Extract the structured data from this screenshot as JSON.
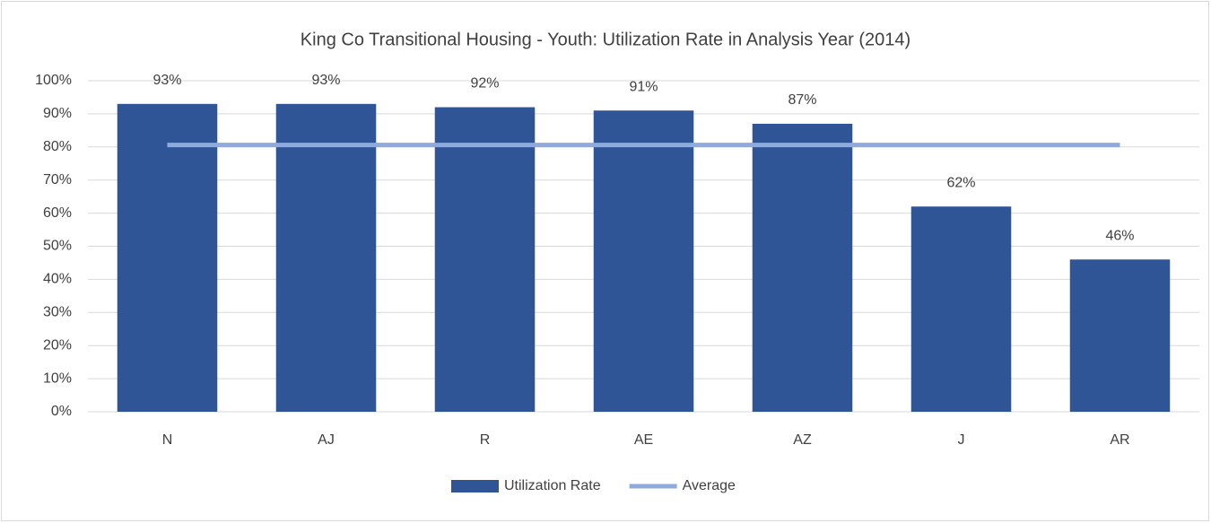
{
  "chart_data": {
    "type": "bar",
    "title": "King Co Transitional Housing - Youth: Utilization Rate in Analysis Year (2014)",
    "categories": [
      "N",
      "AJ",
      "R",
      "AE",
      "AZ",
      "J",
      "AR"
    ],
    "series": [
      {
        "name": "Utilization Rate",
        "type": "bar",
        "color": "#2f5597",
        "values": [
          93,
          93,
          92,
          91,
          87,
          62,
          46
        ],
        "value_labels": [
          "93%",
          "93%",
          "92%",
          "91%",
          "87%",
          "62%",
          "46%"
        ]
      },
      {
        "name": "Average",
        "type": "line",
        "color": "#8faadc",
        "values": [
          80.6,
          80.6,
          80.6,
          80.6,
          80.6,
          80.6,
          80.6
        ]
      }
    ],
    "ylim": [
      0,
      100
    ],
    "yticks": [
      {
        "value": 0,
        "label": "0%"
      },
      {
        "value": 10,
        "label": "10%"
      },
      {
        "value": 20,
        "label": "20%"
      },
      {
        "value": 30,
        "label": "30%"
      },
      {
        "value": 40,
        "label": "40%"
      },
      {
        "value": 50,
        "label": "50%"
      },
      {
        "value": 60,
        "label": "60%"
      },
      {
        "value": 70,
        "label": "70%"
      },
      {
        "value": 80,
        "label": "80%"
      },
      {
        "value": 90,
        "label": "90%"
      },
      {
        "value": 100,
        "label": "100%"
      }
    ],
    "grid": true,
    "legend": "bottom"
  }
}
